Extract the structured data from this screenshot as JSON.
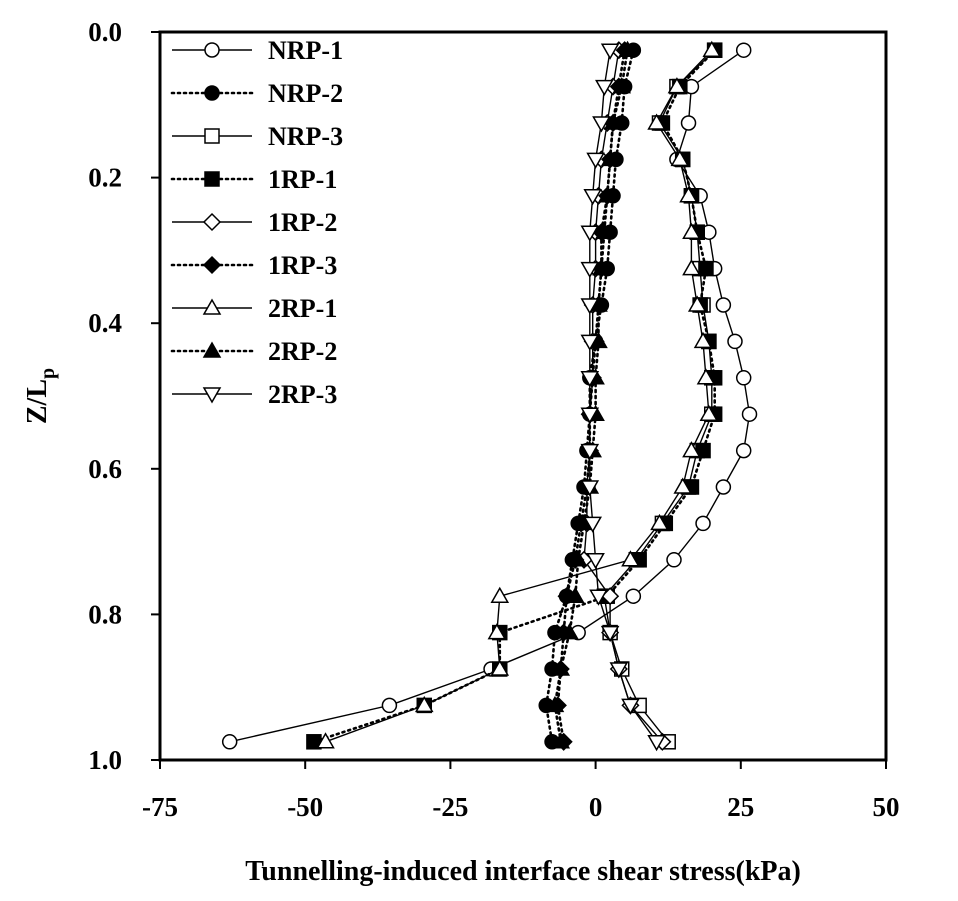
{
  "chart_data": {
    "type": "line",
    "xlabel": "Tunnelling-induced interface shear stress(kPa)",
    "ylabel_main": "Z/L",
    "ylabel_sub": "p",
    "xlim": [
      -75,
      50
    ],
    "ylim": [
      0.0,
      1.0
    ],
    "y_inverted": true,
    "x_ticks": [
      -75,
      -50,
      -25,
      0,
      25,
      50
    ],
    "x_tick_labels": [
      "-75",
      "-50",
      "-25",
      "0",
      "25",
      "50"
    ],
    "y_ticks": [
      0.0,
      0.2,
      0.4,
      0.6,
      0.8,
      1.0
    ],
    "y_tick_labels": [
      "0.0",
      "0.2",
      "0.4",
      "0.6",
      "0.8",
      "1.0"
    ],
    "grid": false,
    "legend_position": "top-left",
    "y": [
      0.025,
      0.075,
      0.125,
      0.175,
      0.225,
      0.275,
      0.325,
      0.375,
      0.425,
      0.475,
      0.525,
      0.575,
      0.625,
      0.675,
      0.725,
      0.775,
      0.825,
      0.875,
      0.925,
      0.975
    ],
    "series": [
      {
        "name": "NRP-1",
        "marker": "circle-open",
        "line": "solid",
        "x": [
          25.5,
          16.5,
          16,
          14,
          18,
          19.5,
          20.5,
          22,
          24,
          25.5,
          26.5,
          25.5,
          22,
          18.5,
          13.5,
          6.5,
          -3,
          -18,
          -35.5,
          -63
        ]
      },
      {
        "name": "NRP-2",
        "marker": "circle-filled",
        "line": "dotted",
        "x": [
          6.5,
          5,
          4.5,
          3.5,
          3,
          2.5,
          2,
          1,
          0,
          -1,
          -1,
          -1.5,
          -2,
          -3,
          -4,
          -5,
          -7,
          -7.5,
          -8.5,
          -7.5
        ]
      },
      {
        "name": "NRP-3",
        "marker": "square-open",
        "line": "solid",
        "x": [
          20.5,
          14,
          11,
          15,
          16.5,
          17.5,
          18,
          18.5,
          19.5,
          20,
          20,
          17.5,
          16,
          11.5,
          7,
          1.5,
          2.5,
          4.5,
          7.5,
          12.5
        ]
      },
      {
        "name": "1RP-1",
        "marker": "square-filled",
        "line": "dotted",
        "x": [
          20.5,
          14.5,
          11.5,
          15,
          16.5,
          17.5,
          19,
          18,
          19.5,
          20.5,
          20.5,
          18.5,
          16.5,
          12,
          7.5,
          2,
          -16.5,
          -16.5,
          -29.5,
          -48.5
        ]
      },
      {
        "name": "1RP-2",
        "marker": "diamond-open",
        "line": "solid",
        "x": [
          4,
          3,
          2,
          1,
          0.5,
          0,
          0,
          -0.5,
          -0.5,
          -0.5,
          -1,
          -1,
          -1.5,
          -1.5,
          -2,
          2.5,
          2.5,
          4,
          6,
          11.5
        ]
      },
      {
        "name": "1RP-3",
        "marker": "diamond-filled",
        "line": "dotted",
        "x": [
          5,
          4,
          3,
          2.5,
          2,
          1,
          1,
          0.5,
          0,
          -0.5,
          -1,
          -1,
          -1.5,
          -2.5,
          -3.5,
          -5,
          -5.5,
          -6,
          -6.5,
          -5.5
        ]
      },
      {
        "name": "2RP-1",
        "marker": "triangle-up-open",
        "line": "solid",
        "x": [
          20,
          14,
          10.5,
          14.5,
          16,
          16.5,
          16.5,
          17.5,
          18.5,
          19,
          19.5,
          16.5,
          15,
          11,
          6,
          -16.5,
          -17,
          -16.5,
          -29.5,
          -46.5
        ]
      },
      {
        "name": "2RP-2",
        "marker": "triangle-up-filled",
        "line": "dotted",
        "x": [
          5.5,
          4.5,
          3,
          2.5,
          2,
          1.5,
          1,
          0.5,
          0.5,
          0,
          0,
          -0.5,
          -1,
          -2,
          -3,
          -3.5,
          -4.5,
          -6,
          -7,
          -6
        ]
      },
      {
        "name": "2RP-3",
        "marker": "triangle-down-open",
        "line": "solid",
        "x": [
          2.5,
          1.5,
          1,
          0,
          -0.5,
          -1,
          -1,
          -1,
          -1,
          -1,
          -1,
          -1,
          -1,
          -0.5,
          0,
          0.5,
          2.5,
          4,
          6,
          10.5
        ]
      }
    ]
  }
}
